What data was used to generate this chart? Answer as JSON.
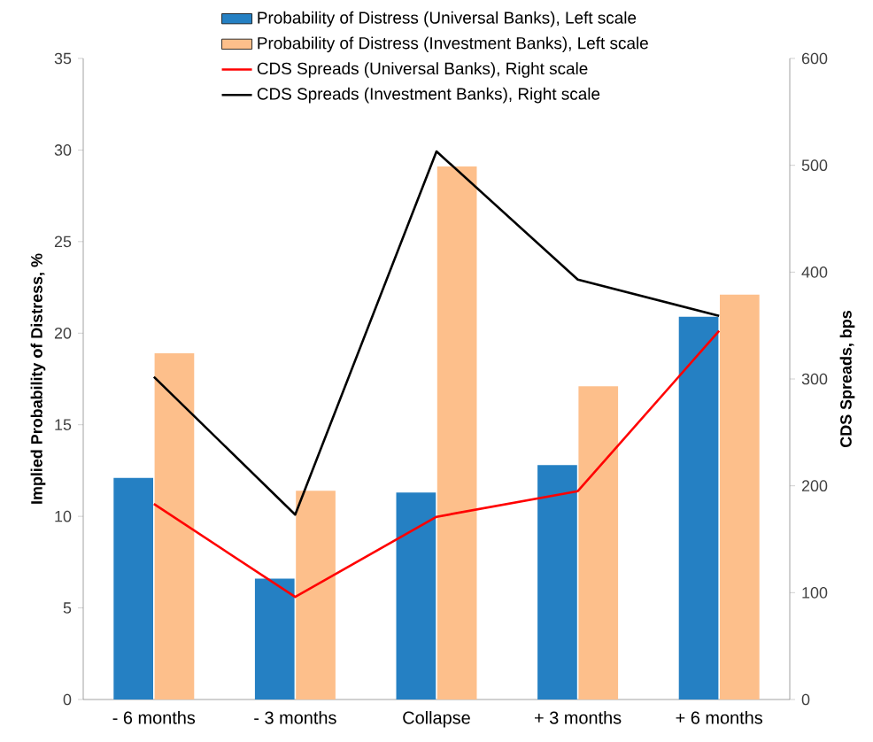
{
  "chart_data": {
    "type": "bar",
    "categories": [
      "- 6 months",
      "- 3 months",
      "Collapse",
      "+ 3 months",
      "+ 6 months"
    ],
    "ylabel": "Implied Probability of Distress, %",
    "y2label": "CDS Spreads, bps",
    "ylim": [
      0,
      35
    ],
    "yticks": [
      0,
      5,
      10,
      15,
      20,
      25,
      30,
      35
    ],
    "y2lim": [
      0,
      600
    ],
    "y2ticks": [
      0,
      100,
      200,
      300,
      400,
      500,
      600
    ],
    "legend": "top",
    "series": [
      {
        "name": "Probability of Distress (Universal Banks), Left scale",
        "color": "#2580c3",
        "values": [
          12.1,
          6.6,
          11.3,
          12.8,
          20.9
        ]
      },
      {
        "name": "Probability of Distress (Investment Banks), Left scale",
        "color": "#fdbf8b",
        "values": [
          18.9,
          11.4,
          29.1,
          17.1,
          22.1
        ]
      },
      {
        "name": "CDS Spreads (Universal Banks), Right scale",
        "type": "line",
        "axis": "y2",
        "color": "#ff0000",
        "values": [
          183,
          96,
          171,
          195,
          345
        ]
      },
      {
        "name": "CDS Spreads (Investment Banks), Right scale",
        "type": "line",
        "axis": "y2",
        "color": "#000000",
        "values": [
          302,
          173,
          513,
          393,
          359
        ]
      }
    ]
  }
}
